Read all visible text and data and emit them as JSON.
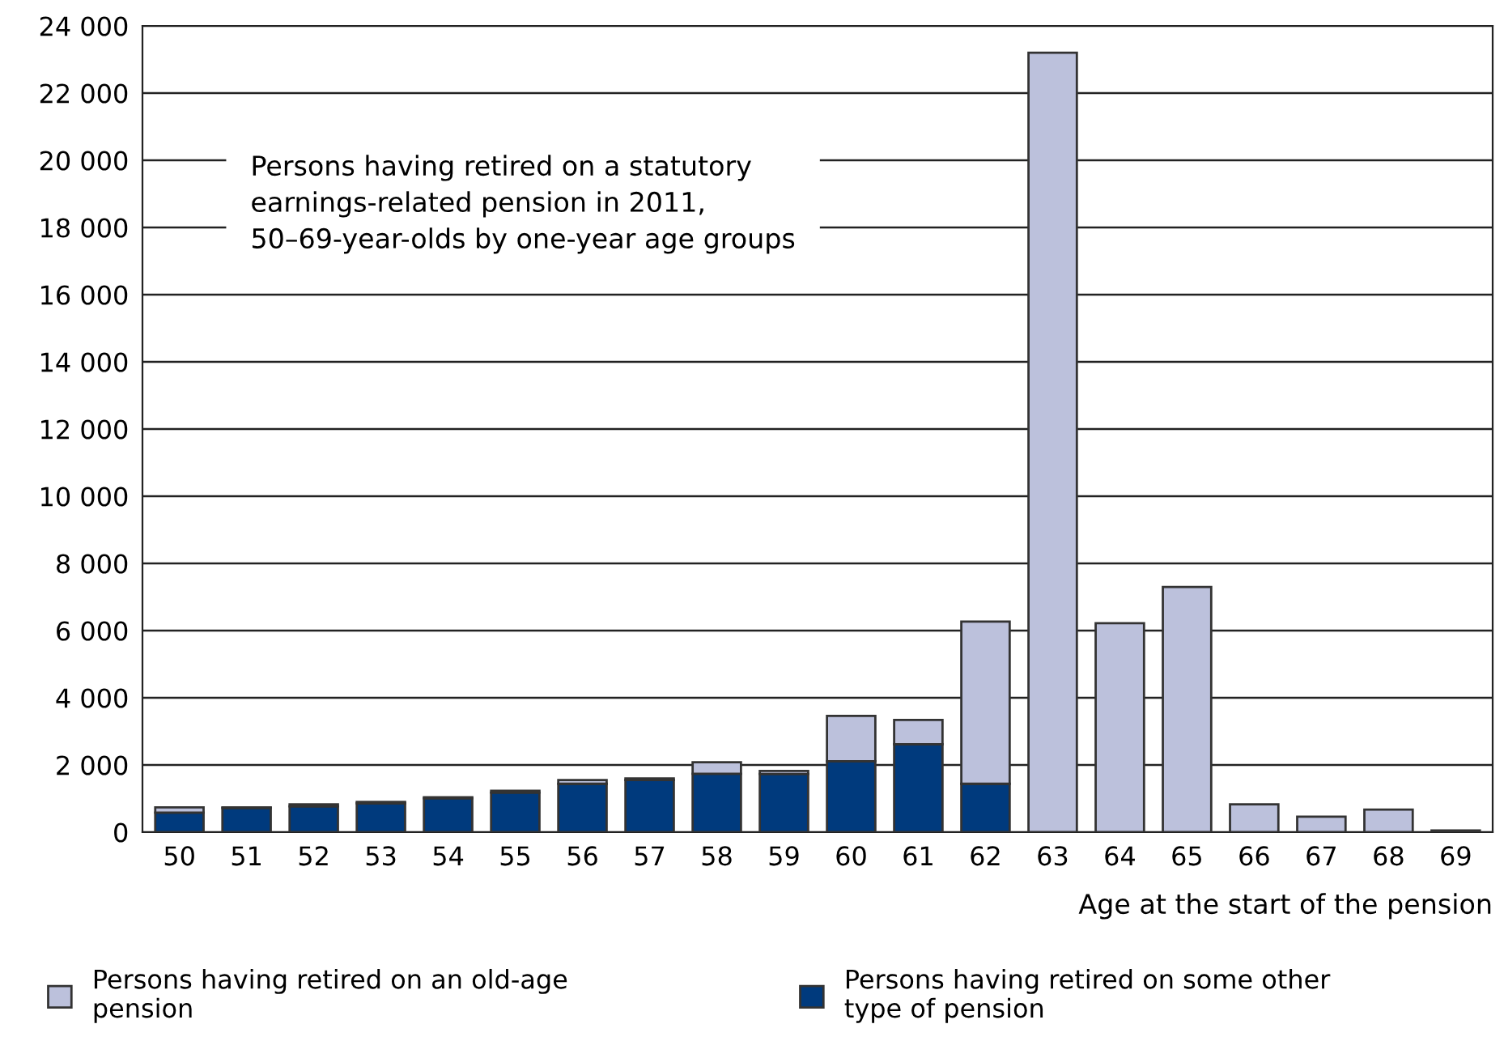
{
  "chart_data": {
    "type": "bar",
    "stacked": true,
    "annotations": [
      "Persons having retired on a statutory\nearnings-related pension in 2011,\n50–69-year-olds by one-year age groups"
    ],
    "xlabel": "Age at the start of the pension",
    "categories": [
      "50",
      "51",
      "52",
      "53",
      "54",
      "55",
      "56",
      "57",
      "58",
      "59",
      "60",
      "61",
      "62",
      "63",
      "64",
      "65",
      "66",
      "67",
      "68",
      "69"
    ],
    "series": [
      {
        "name": "Persons having retired on some other type of pension",
        "color": "#003a7d",
        "values": [
          580,
          720,
          770,
          860,
          1010,
          1180,
          1440,
          1550,
          1740,
          1730,
          2110,
          2620,
          1440,
          0,
          0,
          0,
          0,
          0,
          0,
          0
        ]
      },
      {
        "name": "Persons having retired on an old-age pension",
        "color": "#bcc1dc",
        "values": [
          160,
          20,
          60,
          40,
          30,
          50,
          110,
          50,
          340,
          90,
          1350,
          720,
          4830,
          23200,
          6220,
          7300,
          830,
          460,
          670,
          50
        ]
      }
    ],
    "ylim": [
      0,
      24000
    ],
    "yticks": [
      {
        "value": 0,
        "label": "0"
      },
      {
        "value": 2000,
        "label": "2 000"
      },
      {
        "value": 4000,
        "label": "4 000"
      },
      {
        "value": 6000,
        "label": "6 000"
      },
      {
        "value": 8000,
        "label": "8 000"
      },
      {
        "value": 10000,
        "label": "10 000"
      },
      {
        "value": 12000,
        "label": "12 000"
      },
      {
        "value": 14000,
        "label": "14 000"
      },
      {
        "value": 16000,
        "label": "16 000"
      },
      {
        "value": 18000,
        "label": "18 000"
      },
      {
        "value": 20000,
        "label": "20 000"
      },
      {
        "value": 22000,
        "label": "22 000"
      },
      {
        "value": 24000,
        "label": "24 000"
      }
    ],
    "grid": "y",
    "legend": "bottom"
  }
}
